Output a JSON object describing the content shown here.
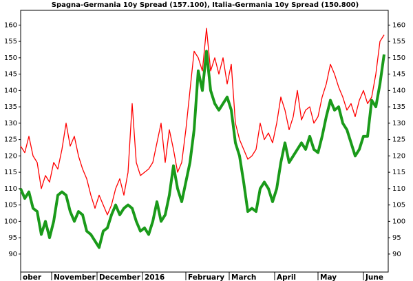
{
  "chart_data": {
    "type": "line",
    "title": "Spagna-Germania 10y Spread (157.100), Italia-Germania 10y Spread (150.800)",
    "x": [
      0,
      2,
      4,
      6,
      8,
      10,
      12,
      14,
      16,
      18,
      20,
      22,
      24,
      26,
      28,
      30,
      32,
      34,
      36,
      38,
      40,
      42,
      44,
      46,
      48,
      50,
      52,
      54,
      56,
      58,
      60,
      62,
      64,
      66,
      68,
      70,
      72,
      74,
      76,
      78,
      80,
      82,
      84,
      86,
      88,
      90,
      92,
      94,
      96,
      98,
      100,
      102,
      104,
      106,
      108,
      110,
      112,
      114,
      116,
      118,
      120,
      122,
      124,
      126,
      128,
      130,
      132,
      134,
      136,
      138,
      140,
      142,
      144,
      146,
      148,
      150,
      152,
      154,
      156,
      158,
      160,
      162,
      164,
      166,
      168,
      170,
      172,
      174,
      176
    ],
    "series": [
      {
        "name": "Spagna-Germania 10y Spread",
        "color": "#ff0000",
        "width": 1.3,
        "values": [
          123,
          121,
          126,
          120,
          118,
          110,
          114,
          112,
          118,
          116,
          122,
          130,
          123,
          126,
          120,
          116,
          113,
          108,
          104,
          108,
          105,
          102,
          105,
          110,
          113,
          108,
          115,
          136,
          118,
          114,
          115,
          116,
          118,
          124,
          130,
          118,
          128,
          122,
          115,
          118,
          128,
          140,
          152,
          150,
          146,
          159,
          146,
          150,
          145,
          150,
          142,
          148,
          130,
          125,
          122,
          119,
          120,
          122,
          130,
          125,
          127,
          124,
          130,
          138,
          134,
          128,
          132,
          140,
          131,
          134,
          135,
          130,
          132,
          138,
          142,
          148,
          145,
          141,
          138,
          134,
          136,
          132,
          137,
          140,
          136,
          138,
          145,
          155,
          157
        ]
      },
      {
        "name": "Italia-Germania 10y Spread",
        "color": "#1a9a1a",
        "width": 4,
        "values": [
          110,
          107,
          109,
          104,
          103,
          96,
          100,
          95,
          100,
          108,
          109,
          108,
          103,
          100,
          103,
          102,
          97,
          96,
          94,
          92,
          97,
          98,
          102,
          105,
          102,
          104,
          105,
          104,
          100,
          97,
          98,
          96,
          100,
          106,
          100,
          102,
          108,
          117,
          110,
          106,
          112,
          118,
          128,
          146,
          140,
          152,
          140,
          136,
          134,
          136,
          138,
          134,
          124,
          120,
          112,
          103,
          104,
          103,
          110,
          112,
          110,
          106,
          110,
          118,
          124,
          118,
          120,
          122,
          124,
          122,
          126,
          122,
          121,
          126,
          132,
          137,
          134,
          135,
          130,
          128,
          124,
          120,
          122,
          126,
          126,
          137,
          135,
          142,
          151
        ]
      }
    ],
    "xlim": [
      0,
      178
    ],
    "xticks": [
      {
        "value": 0,
        "label": "ober"
      },
      {
        "value": 15,
        "label": "November"
      },
      {
        "value": 37,
        "label": "December"
      },
      {
        "value": 59,
        "label": "2016"
      },
      {
        "value": 80,
        "label": "February"
      },
      {
        "value": 101,
        "label": "March"
      },
      {
        "value": 123,
        "label": "April"
      },
      {
        "value": 144,
        "label": "May"
      },
      {
        "value": 166,
        "label": "June"
      }
    ],
    "ylim": [
      84.5,
      164.5
    ],
    "yticks": [
      90,
      95,
      100,
      105,
      110,
      115,
      120,
      125,
      130,
      135,
      140,
      145,
      150,
      155,
      160
    ]
  }
}
